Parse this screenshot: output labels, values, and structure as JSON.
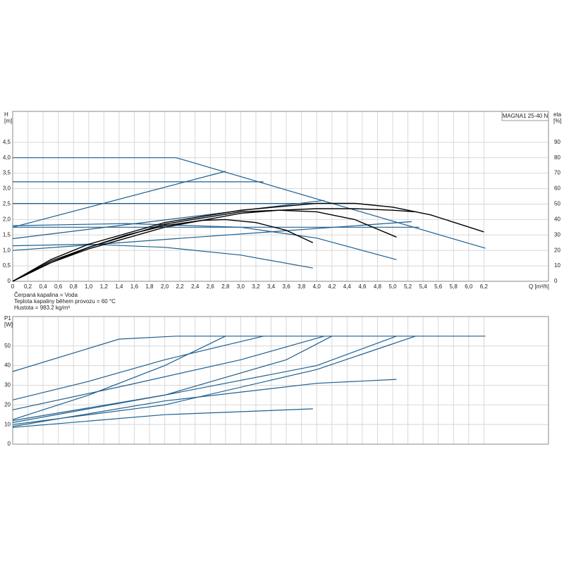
{
  "chart_data": [
    {
      "type": "line",
      "title": "MAGNA1 25-40 N",
      "ylabel": "H",
      "yunit": "[m]",
      "y2label": "eta",
      "y2unit": "[%]",
      "xlabel": "Q [m³/h]",
      "xlim": [
        0,
        7.05
      ],
      "ylim": [
        0,
        5.5
      ],
      "y2lim": [
        0,
        110
      ],
      "grid": true,
      "xticks": [
        0,
        {
          "value": 0.2,
          "label": "0,2"
        },
        {
          "value": 0.4,
          "label": "0,4"
        },
        {
          "value": 0.6,
          "label": "0,6"
        },
        {
          "value": 0.8,
          "label": "0,8"
        },
        {
          "value": 1.0,
          "label": "1,0"
        },
        {
          "value": 1.2,
          "label": "1,2"
        },
        {
          "value": 1.4,
          "label": "1,4"
        },
        {
          "value": 1.6,
          "label": "1,6"
        },
        {
          "value": 1.8,
          "label": "1,8"
        },
        {
          "value": 2.0,
          "label": "2,0"
        },
        {
          "value": 2.2,
          "label": "2,2"
        },
        {
          "value": 2.4,
          "label": "2,4"
        },
        {
          "value": 2.6,
          "label": "2,6"
        },
        {
          "value": 2.8,
          "label": "2,8"
        },
        {
          "value": 3.0,
          "label": "3,0"
        },
        {
          "value": 3.2,
          "label": "3,2"
        },
        {
          "value": 3.4,
          "label": "3,4"
        },
        {
          "value": 3.6,
          "label": "3,6"
        },
        {
          "value": 3.8,
          "label": "3,8"
        },
        {
          "value": 4.0,
          "label": "4,0"
        },
        {
          "value": 4.2,
          "label": "4,2"
        },
        {
          "value": 4.4,
          "label": "4,4"
        },
        {
          "value": 4.6,
          "label": "4,6"
        },
        {
          "value": 4.8,
          "label": "4,8"
        },
        {
          "value": 5.0,
          "label": "5,0"
        },
        {
          "value": 5.2,
          "label": "5,2"
        },
        {
          "value": 5.4,
          "label": "5,4"
        },
        {
          "value": 5.6,
          "label": "5,6"
        },
        {
          "value": 5.8,
          "label": "5,8"
        },
        {
          "value": 6.0,
          "label": "6,0"
        },
        {
          "value": 6.2,
          "label": "6,2"
        }
      ],
      "yticks": [
        0,
        {
          "value": 0.5,
          "label": "0,5"
        },
        {
          "value": 1.0,
          "label": "1,0"
        },
        {
          "value": 1.5,
          "label": "1,5"
        },
        {
          "value": 2.0,
          "label": "2,0"
        },
        {
          "value": 2.5,
          "label": "2,5"
        },
        {
          "value": 3.0,
          "label": "3,0"
        },
        {
          "value": 3.5,
          "label": "3,5"
        },
        {
          "value": 4.0,
          "label": "4,0"
        },
        {
          "value": 4.5,
          "label": "4,5"
        }
      ],
      "y2ticks": [
        0,
        10,
        20,
        30,
        40,
        50,
        60,
        70,
        80,
        90
      ],
      "series": [
        {
          "color": "#1f5f8f",
          "x": [
            0,
            2.15,
            6.22
          ],
          "values": [
            4.0,
            4.0,
            1.07
          ]
        },
        {
          "color": "#1f5f8f",
          "x": [
            0,
            3.3
          ],
          "values": [
            3.22,
            3.22
          ]
        },
        {
          "color": "#1f5f8f",
          "x": [
            0,
            4.5
          ],
          "values": [
            2.52,
            2.52
          ]
        },
        {
          "color": "#1f5f8f",
          "x": [
            0,
            5.35
          ],
          "values": [
            1.75,
            1.75
          ]
        },
        {
          "color": "#1f5f8f",
          "x": [
            0,
            2.8
          ],
          "values": [
            1.75,
            3.56
          ]
        },
        {
          "color": "#1f5f8f",
          "x": [
            0,
            4.1
          ],
          "values": [
            1.38,
            2.62
          ]
        },
        {
          "color": "#1f5f8f",
          "x": [
            0,
            5.25
          ],
          "values": [
            1.0,
            1.93
          ]
        },
        {
          "color": "#1f5f8f",
          "x": [
            0,
            1.5,
            3.0,
            4.0,
            5.05
          ],
          "values": [
            1.8,
            1.87,
            1.75,
            1.4,
            0.7
          ]
        },
        {
          "color": "#1f5f8f",
          "x": [
            0,
            1.0,
            2.0,
            3.0,
            3.95
          ],
          "values": [
            1.15,
            1.2,
            1.1,
            0.85,
            0.43
          ]
        },
        {
          "color": "#000000",
          "axis": "y2",
          "x": [
            0,
            0.5,
            1,
            2,
            3,
            4,
            4.5,
            5,
            5.5,
            6.2
          ],
          "values": [
            0,
            14,
            24,
            38,
            46,
            50.5,
            50.5,
            48,
            43,
            32
          ]
        },
        {
          "color": "#000000",
          "axis": "y2",
          "x": [
            0,
            0.5,
            1,
            1.5,
            2,
            2.5,
            2.8,
            3.2,
            3.6,
            3.95
          ],
          "values": [
            0,
            13,
            22,
            30,
            36,
            39.5,
            40,
            38,
            33,
            25
          ]
        },
        {
          "color": "#000000",
          "axis": "y2",
          "x": [
            0,
            0.5,
            1,
            2,
            3,
            3.5,
            4,
            4.5,
            5.05
          ],
          "values": [
            0,
            12,
            21,
            35,
            44,
            46,
            45,
            40,
            28.6
          ]
        },
        {
          "color": "#000000",
          "axis": "y2",
          "x": [
            0,
            0.5,
            1,
            2,
            3,
            4,
            4.5,
            5,
            5.3
          ],
          "values": [
            0,
            12,
            22,
            37,
            45,
            47,
            47,
            46,
            45
          ]
        }
      ]
    },
    {
      "type": "line",
      "ylabel": "P1",
      "yunit": "[W]",
      "xlim": [
        0,
        7.05
      ],
      "ylim": [
        0,
        65
      ],
      "grid": true,
      "yticks": [
        0,
        10,
        20,
        30,
        40,
        50
      ],
      "series": [
        {
          "color": "#1f5f8f",
          "x": [
            0,
            1.4,
            2.15,
            6.22
          ],
          "values": [
            37,
            53.5,
            55,
            55
          ]
        },
        {
          "color": "#1f5f8f",
          "x": [
            0,
            1.0,
            2.0,
            3.3
          ],
          "values": [
            22.5,
            32,
            43,
            55
          ]
        },
        {
          "color": "#1f5f8f",
          "x": [
            0,
            1.5,
            3.0,
            4.1
          ],
          "values": [
            17.5,
            30,
            43,
            55
          ]
        },
        {
          "color": "#1f5f8f",
          "x": [
            0,
            1.0,
            2.0,
            2.8
          ],
          "values": [
            12.5,
            25,
            40,
            55
          ]
        },
        {
          "color": "#1f5f8f",
          "x": [
            0,
            2,
            3.6,
            4.2
          ],
          "values": [
            11,
            25,
            43,
            55
          ]
        },
        {
          "color": "#1f5f8f",
          "x": [
            0,
            2,
            4,
            5.05
          ],
          "values": [
            12,
            25,
            40,
            55
          ]
        },
        {
          "color": "#1f5f8f",
          "x": [
            0,
            2,
            4,
            5.3
          ],
          "values": [
            10,
            20,
            38,
            55
          ]
        },
        {
          "color": "#1f5f8f",
          "x": [
            0,
            2,
            4,
            5.05
          ],
          "values": [
            9,
            22,
            31,
            33
          ]
        },
        {
          "color": "#1f5f8f",
          "x": [
            0,
            2,
            3.95
          ],
          "values": [
            8.5,
            15,
            18
          ]
        }
      ]
    }
  ],
  "notes": [
    "Čerpaná kapalina = Voda",
    "Teplota kapaliny během provozu = 60 °C",
    "Hustota = 983.2 kg/m³"
  ]
}
